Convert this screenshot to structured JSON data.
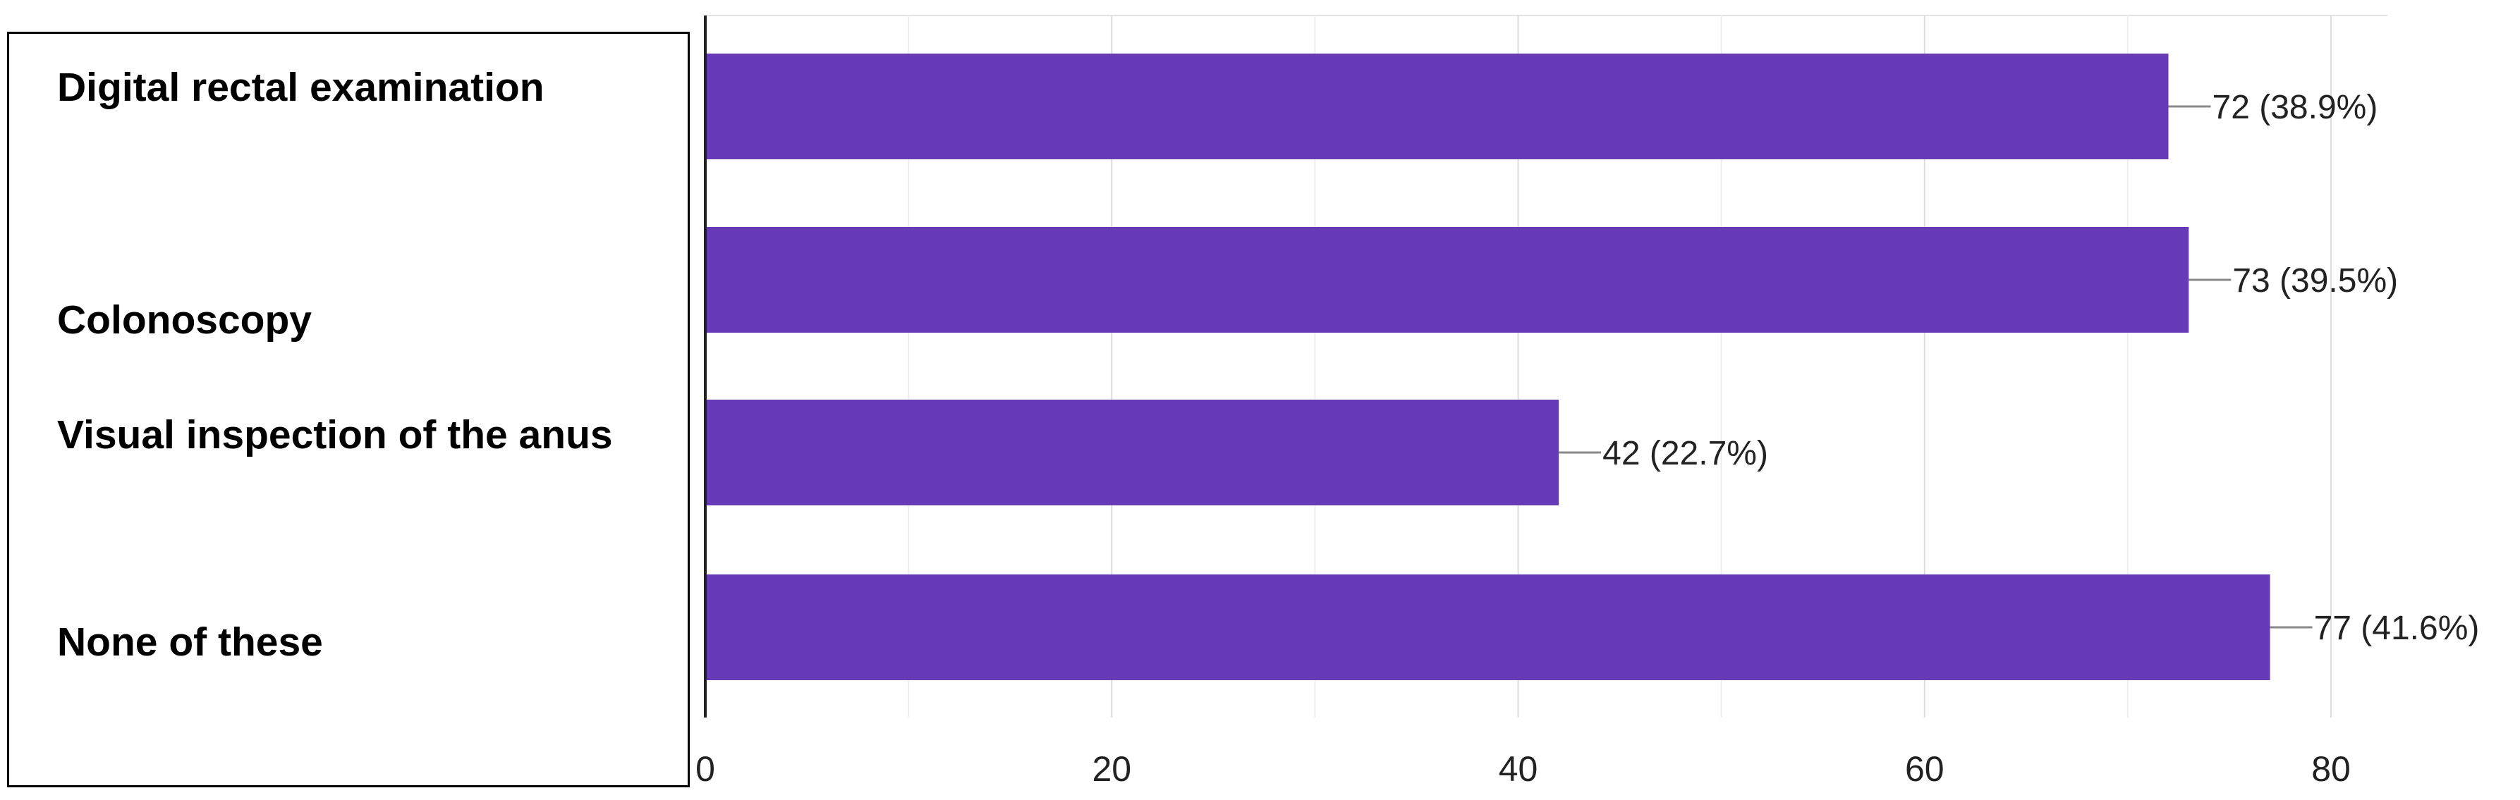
{
  "chart_data": {
    "type": "bar",
    "orientation": "horizontal",
    "categories": [
      "Digital rectal examination",
      "Colonoscopy",
      "Visual inspection of the anus",
      "None of these"
    ],
    "values": [
      72,
      73,
      42,
      77
    ],
    "value_labels": [
      "72 (38.9%)",
      "73 (39.5%)",
      "42 (22.7%)",
      "77 (41.6%)"
    ],
    "xlim": [
      0,
      80
    ],
    "x_ticks": [
      "0",
      "20",
      "40",
      "60",
      "80"
    ],
    "x_tick_values": [
      0,
      20,
      40,
      60,
      80
    ],
    "grid": true,
    "bar_color": "#673ab7",
    "xlabel": "",
    "ylabel": "",
    "title": ""
  }
}
